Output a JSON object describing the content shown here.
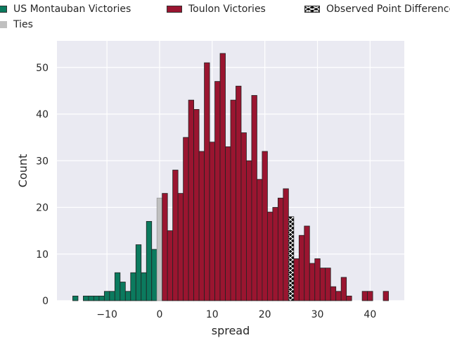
{
  "colors": {
    "us": "#0b7a5e",
    "toulon": "#9a1530",
    "ties": "#c0c0c0",
    "observed": "#000000",
    "background": "#eaeaf2",
    "grid": "#ffffff"
  },
  "legend": [
    {
      "key": "us",
      "label": "US Montauban Victories"
    },
    {
      "key": "toulon",
      "label": "Toulon Victories"
    },
    {
      "key": "observed",
      "label": "Observed Point Difference"
    },
    {
      "key": "ties",
      "label": "Ties"
    }
  ],
  "chart_data": {
    "type": "bar",
    "xlabel": "spread",
    "ylabel": "Count",
    "xlim": [
      -19.5,
      46.5
    ],
    "ylim": [
      0,
      55.7
    ],
    "xticks": [
      -10,
      0,
      10,
      20,
      30,
      40
    ],
    "xtick_labels": [
      "−10",
      "0",
      "10",
      "20",
      "30",
      "40"
    ],
    "yticks": [
      0,
      10,
      20,
      30,
      40,
      50
    ],
    "grid": true,
    "legend_position": "top",
    "observed_spread": 25,
    "series": [
      {
        "name": "US Montauban Victories",
        "key": "us",
        "x": [
          -16,
          -14,
          -13,
          -12,
          -11,
          -10,
          -9,
          -8,
          -7,
          -6,
          -5,
          -4,
          -3,
          -2,
          -1
        ],
        "values": [
          1,
          1,
          1,
          1,
          1,
          2,
          2,
          6,
          4,
          2,
          6,
          12,
          6,
          17,
          11
        ]
      },
      {
        "name": "Ties",
        "key": "ties",
        "x": [
          0
        ],
        "values": [
          22
        ]
      },
      {
        "name": "Toulon Victories",
        "key": "toulon",
        "x": [
          1,
          2,
          3,
          4,
          5,
          6,
          7,
          8,
          9,
          10,
          11,
          12,
          13,
          14,
          15,
          16,
          17,
          18,
          19,
          20,
          21,
          22,
          23,
          24,
          26,
          27,
          28,
          29,
          30,
          31,
          32,
          33,
          34,
          35,
          36,
          39,
          40,
          43
        ],
        "values": [
          23,
          15,
          28,
          23,
          35,
          43,
          41,
          32,
          51,
          34,
          47,
          53,
          33,
          43,
          46,
          36,
          30,
          44,
          26,
          32,
          19,
          20,
          22,
          24,
          9,
          14,
          16,
          8,
          9,
          7,
          7,
          3,
          2,
          5,
          1,
          2,
          2,
          2
        ]
      },
      {
        "name": "Observed Point Difference",
        "key": "observed",
        "x": [
          25
        ],
        "values": [
          18
        ]
      }
    ]
  }
}
